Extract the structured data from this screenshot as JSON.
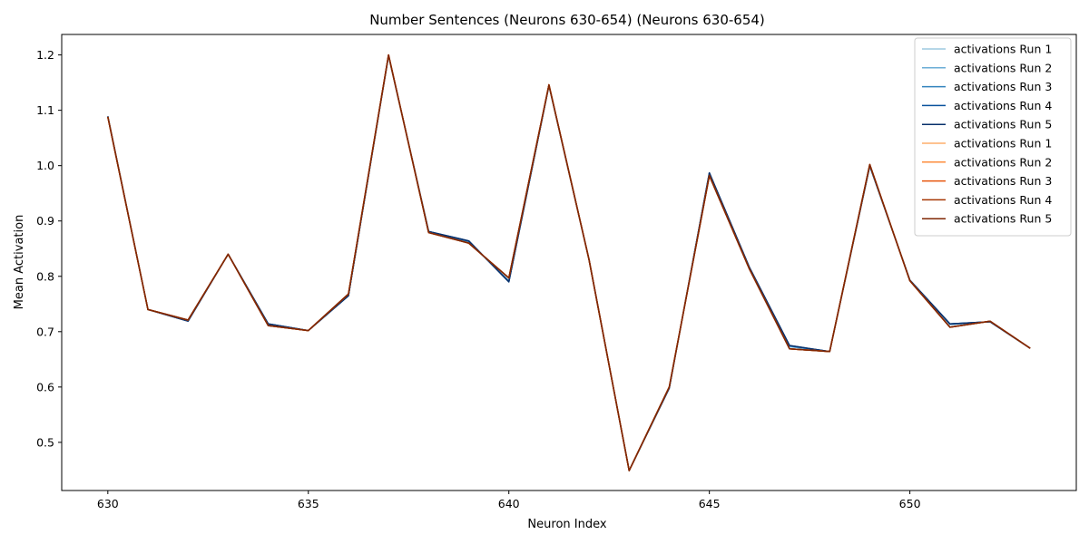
{
  "chart_data": {
    "type": "line",
    "title": "Number Sentences (Neurons 630-654) (Neurons 630-654)",
    "xlabel": "Neuron Index",
    "ylabel": "Mean Activation",
    "xlim": [
      628.85,
      654.15
    ],
    "ylim": [
      0.413,
      1.237
    ],
    "xticks": [
      630,
      635,
      640,
      645,
      650
    ],
    "yticks": [
      0.5,
      0.6,
      0.7,
      0.8,
      0.9,
      1.0,
      1.1,
      1.2
    ],
    "ytick_labels": [
      "0.5",
      "0.6",
      "0.7",
      "0.8",
      "0.9",
      "1.0",
      "1.1",
      "1.2"
    ],
    "grid": false,
    "legend_position": "top-right",
    "x": [
      630,
      631,
      632,
      633,
      634,
      635,
      636,
      637,
      638,
      639,
      640,
      641,
      642,
      643,
      644,
      645,
      646,
      647,
      648,
      649,
      650,
      651,
      652,
      653
    ],
    "series": [
      {
        "name": "activations Run 1",
        "color": "#9ecae1",
        "values": [
          1.089,
          0.74,
          0.72,
          0.84,
          0.713,
          0.702,
          0.765,
          1.199,
          0.88,
          0.862,
          0.792,
          1.145,
          0.83,
          0.449,
          0.598,
          0.985,
          0.815,
          0.673,
          0.664,
          0.999,
          0.793,
          0.713,
          0.718,
          0.67
        ]
      },
      {
        "name": "activations Run 2",
        "color": "#6baed6",
        "values": [
          1.089,
          0.74,
          0.72,
          0.84,
          0.713,
          0.702,
          0.765,
          1.199,
          0.88,
          0.862,
          0.792,
          1.145,
          0.83,
          0.449,
          0.598,
          0.985,
          0.815,
          0.673,
          0.664,
          0.999,
          0.793,
          0.713,
          0.718,
          0.67
        ]
      },
      {
        "name": "activations Run 3",
        "color": "#3182bd",
        "values": [
          1.089,
          0.74,
          0.72,
          0.84,
          0.714,
          0.702,
          0.765,
          1.199,
          0.881,
          0.863,
          0.791,
          1.145,
          0.83,
          0.449,
          0.598,
          0.986,
          0.815,
          0.674,
          0.664,
          1.0,
          0.793,
          0.714,
          0.718,
          0.67
        ]
      },
      {
        "name": "activations Run 4",
        "color": "#08519c",
        "values": [
          1.089,
          0.74,
          0.719,
          0.84,
          0.714,
          0.702,
          0.765,
          1.199,
          0.881,
          0.864,
          0.79,
          1.145,
          0.83,
          0.449,
          0.598,
          0.987,
          0.816,
          0.675,
          0.664,
          1.0,
          0.793,
          0.714,
          0.718,
          0.67
        ]
      },
      {
        "name": "activations Run 5",
        "color": "#08306b",
        "values": [
          1.089,
          0.74,
          0.719,
          0.84,
          0.714,
          0.702,
          0.765,
          1.199,
          0.881,
          0.864,
          0.79,
          1.145,
          0.83,
          0.449,
          0.598,
          0.987,
          0.816,
          0.675,
          0.664,
          1.0,
          0.793,
          0.714,
          0.718,
          0.67
        ]
      },
      {
        "name": "activations Run 1",
        "color": "#fdae6b",
        "values": [
          1.088,
          0.74,
          0.721,
          0.84,
          0.711,
          0.702,
          0.768,
          1.2,
          0.879,
          0.86,
          0.797,
          1.146,
          0.83,
          0.449,
          0.6,
          0.982,
          0.813,
          0.669,
          0.664,
          1.002,
          0.792,
          0.708,
          0.719,
          0.67
        ]
      },
      {
        "name": "activations Run 2",
        "color": "#fd8d3c",
        "values": [
          1.088,
          0.74,
          0.721,
          0.84,
          0.711,
          0.702,
          0.768,
          1.2,
          0.879,
          0.86,
          0.797,
          1.146,
          0.83,
          0.449,
          0.6,
          0.982,
          0.813,
          0.669,
          0.664,
          1.002,
          0.792,
          0.708,
          0.719,
          0.67
        ]
      },
      {
        "name": "activations Run 3",
        "color": "#e6550d",
        "values": [
          1.088,
          0.74,
          0.721,
          0.84,
          0.711,
          0.702,
          0.768,
          1.2,
          0.879,
          0.86,
          0.797,
          1.146,
          0.83,
          0.449,
          0.6,
          0.982,
          0.813,
          0.669,
          0.664,
          1.002,
          0.792,
          0.708,
          0.719,
          0.67
        ]
      },
      {
        "name": "activations Run 4",
        "color": "#a63603",
        "values": [
          1.088,
          0.74,
          0.721,
          0.84,
          0.711,
          0.702,
          0.768,
          1.2,
          0.879,
          0.86,
          0.797,
          1.146,
          0.83,
          0.449,
          0.6,
          0.982,
          0.813,
          0.669,
          0.664,
          1.002,
          0.792,
          0.708,
          0.719,
          0.67
        ]
      },
      {
        "name": "activations Run 5",
        "color": "#7f2704",
        "values": [
          1.088,
          0.74,
          0.721,
          0.84,
          0.711,
          0.702,
          0.768,
          1.2,
          0.879,
          0.86,
          0.797,
          1.146,
          0.83,
          0.449,
          0.6,
          0.982,
          0.813,
          0.669,
          0.664,
          1.002,
          0.792,
          0.708,
          0.719,
          0.67
        ]
      }
    ]
  }
}
